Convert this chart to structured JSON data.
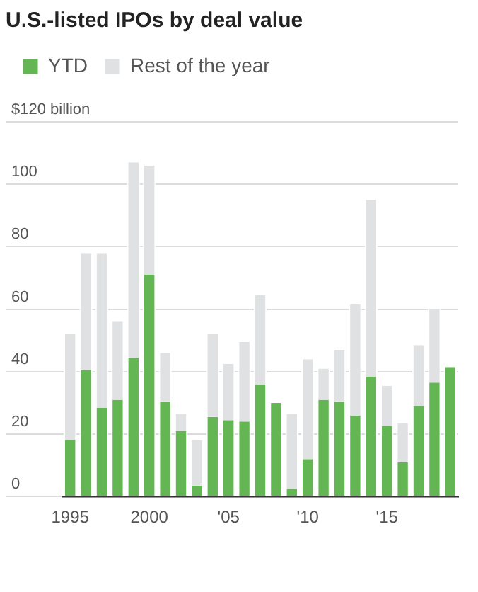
{
  "chart_data": {
    "type": "bar",
    "title": "U.S.-listed IPOs by deal value",
    "stacked": true,
    "legend": "top left",
    "grid": "y",
    "categories": [
      "1995",
      null,
      null,
      null,
      null,
      "2000",
      null,
      null,
      null,
      null,
      "'05",
      null,
      null,
      null,
      null,
      "'10",
      null,
      null,
      null,
      null,
      "'15",
      null,
      null,
      null,
      null
    ],
    "ylim": [
      0,
      120
    ],
    "yticks": [
      0,
      20,
      40,
      60,
      80,
      100,
      {
        "value": 120,
        "label": "$120 billion"
      }
    ],
    "series": [
      {
        "name": "YTD",
        "color": "#63b653",
        "values": [
          18,
          40.5,
          28.5,
          31,
          44.5,
          71,
          30.5,
          21,
          3.5,
          25.5,
          24.5,
          24,
          36,
          30,
          2.5,
          12,
          31,
          30.5,
          26,
          38.5,
          22.5,
          11,
          29,
          36.5,
          41.5
        ]
      },
      {
        "name": "Rest of the year",
        "color": "#e0e1e3",
        "values": [
          34,
          37.5,
          49.5,
          25,
          62.5,
          35,
          15.5,
          5.5,
          14.5,
          26.5,
          18,
          25.5,
          28.5,
          0,
          24,
          32,
          10,
          16.5,
          35.5,
          56.5,
          13,
          12.5,
          19.5,
          23.5,
          0
        ]
      }
    ]
  }
}
